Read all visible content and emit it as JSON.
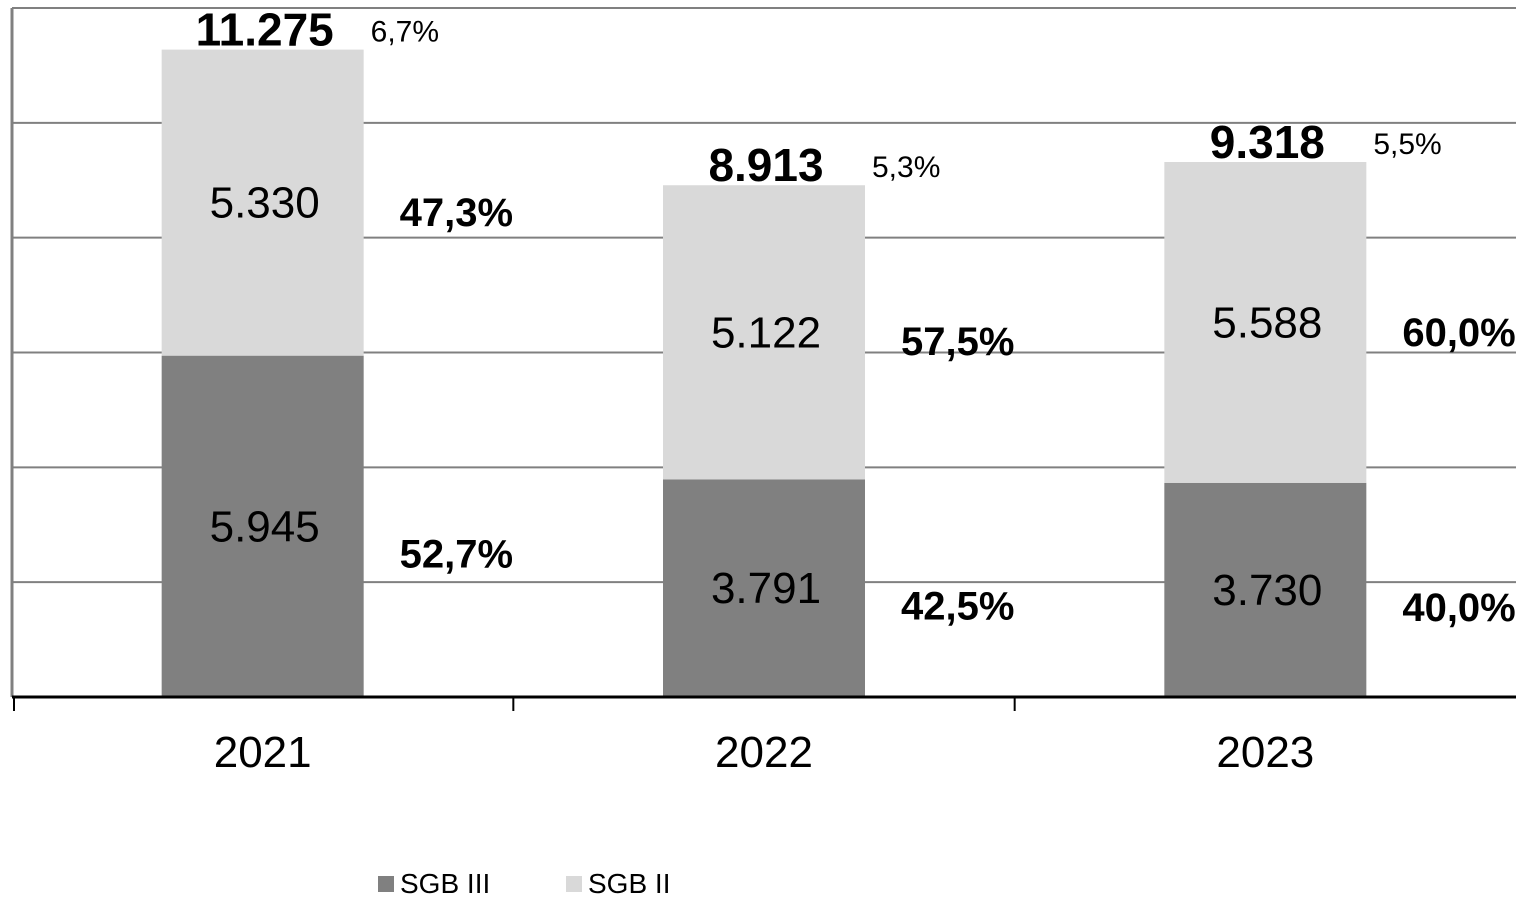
{
  "chart_data": {
    "type": "bar",
    "stacked": true,
    "categories": [
      "2021",
      "2022",
      "2023"
    ],
    "series": [
      {
        "name": "SGB III",
        "values": [
          5945,
          3791,
          3730
        ],
        "labels": [
          "5.945",
          "3.791",
          "3.730"
        ],
        "shares": [
          "52,7%",
          "42,5%",
          "40,0%"
        ],
        "color": "#808080"
      },
      {
        "name": "SGB II",
        "values": [
          5330,
          5122,
          5588
        ],
        "labels": [
          "5.330",
          "5.122",
          "5.588"
        ],
        "shares": [
          "47,3%",
          "57,5%",
          "60,0%"
        ],
        "color": "#d9d9d9"
      }
    ],
    "totals": {
      "values": [
        11275,
        8913,
        9318
      ],
      "labels": [
        "11.275",
        "8.913",
        "9.318"
      ],
      "percents": [
        "6,7%",
        "5,3%",
        "5,5%"
      ]
    },
    "ylim": [
      0,
      12000
    ],
    "y_gridline_step": 2000,
    "grid": true,
    "legend": "bottom-center",
    "gridline_color": "#808080"
  }
}
